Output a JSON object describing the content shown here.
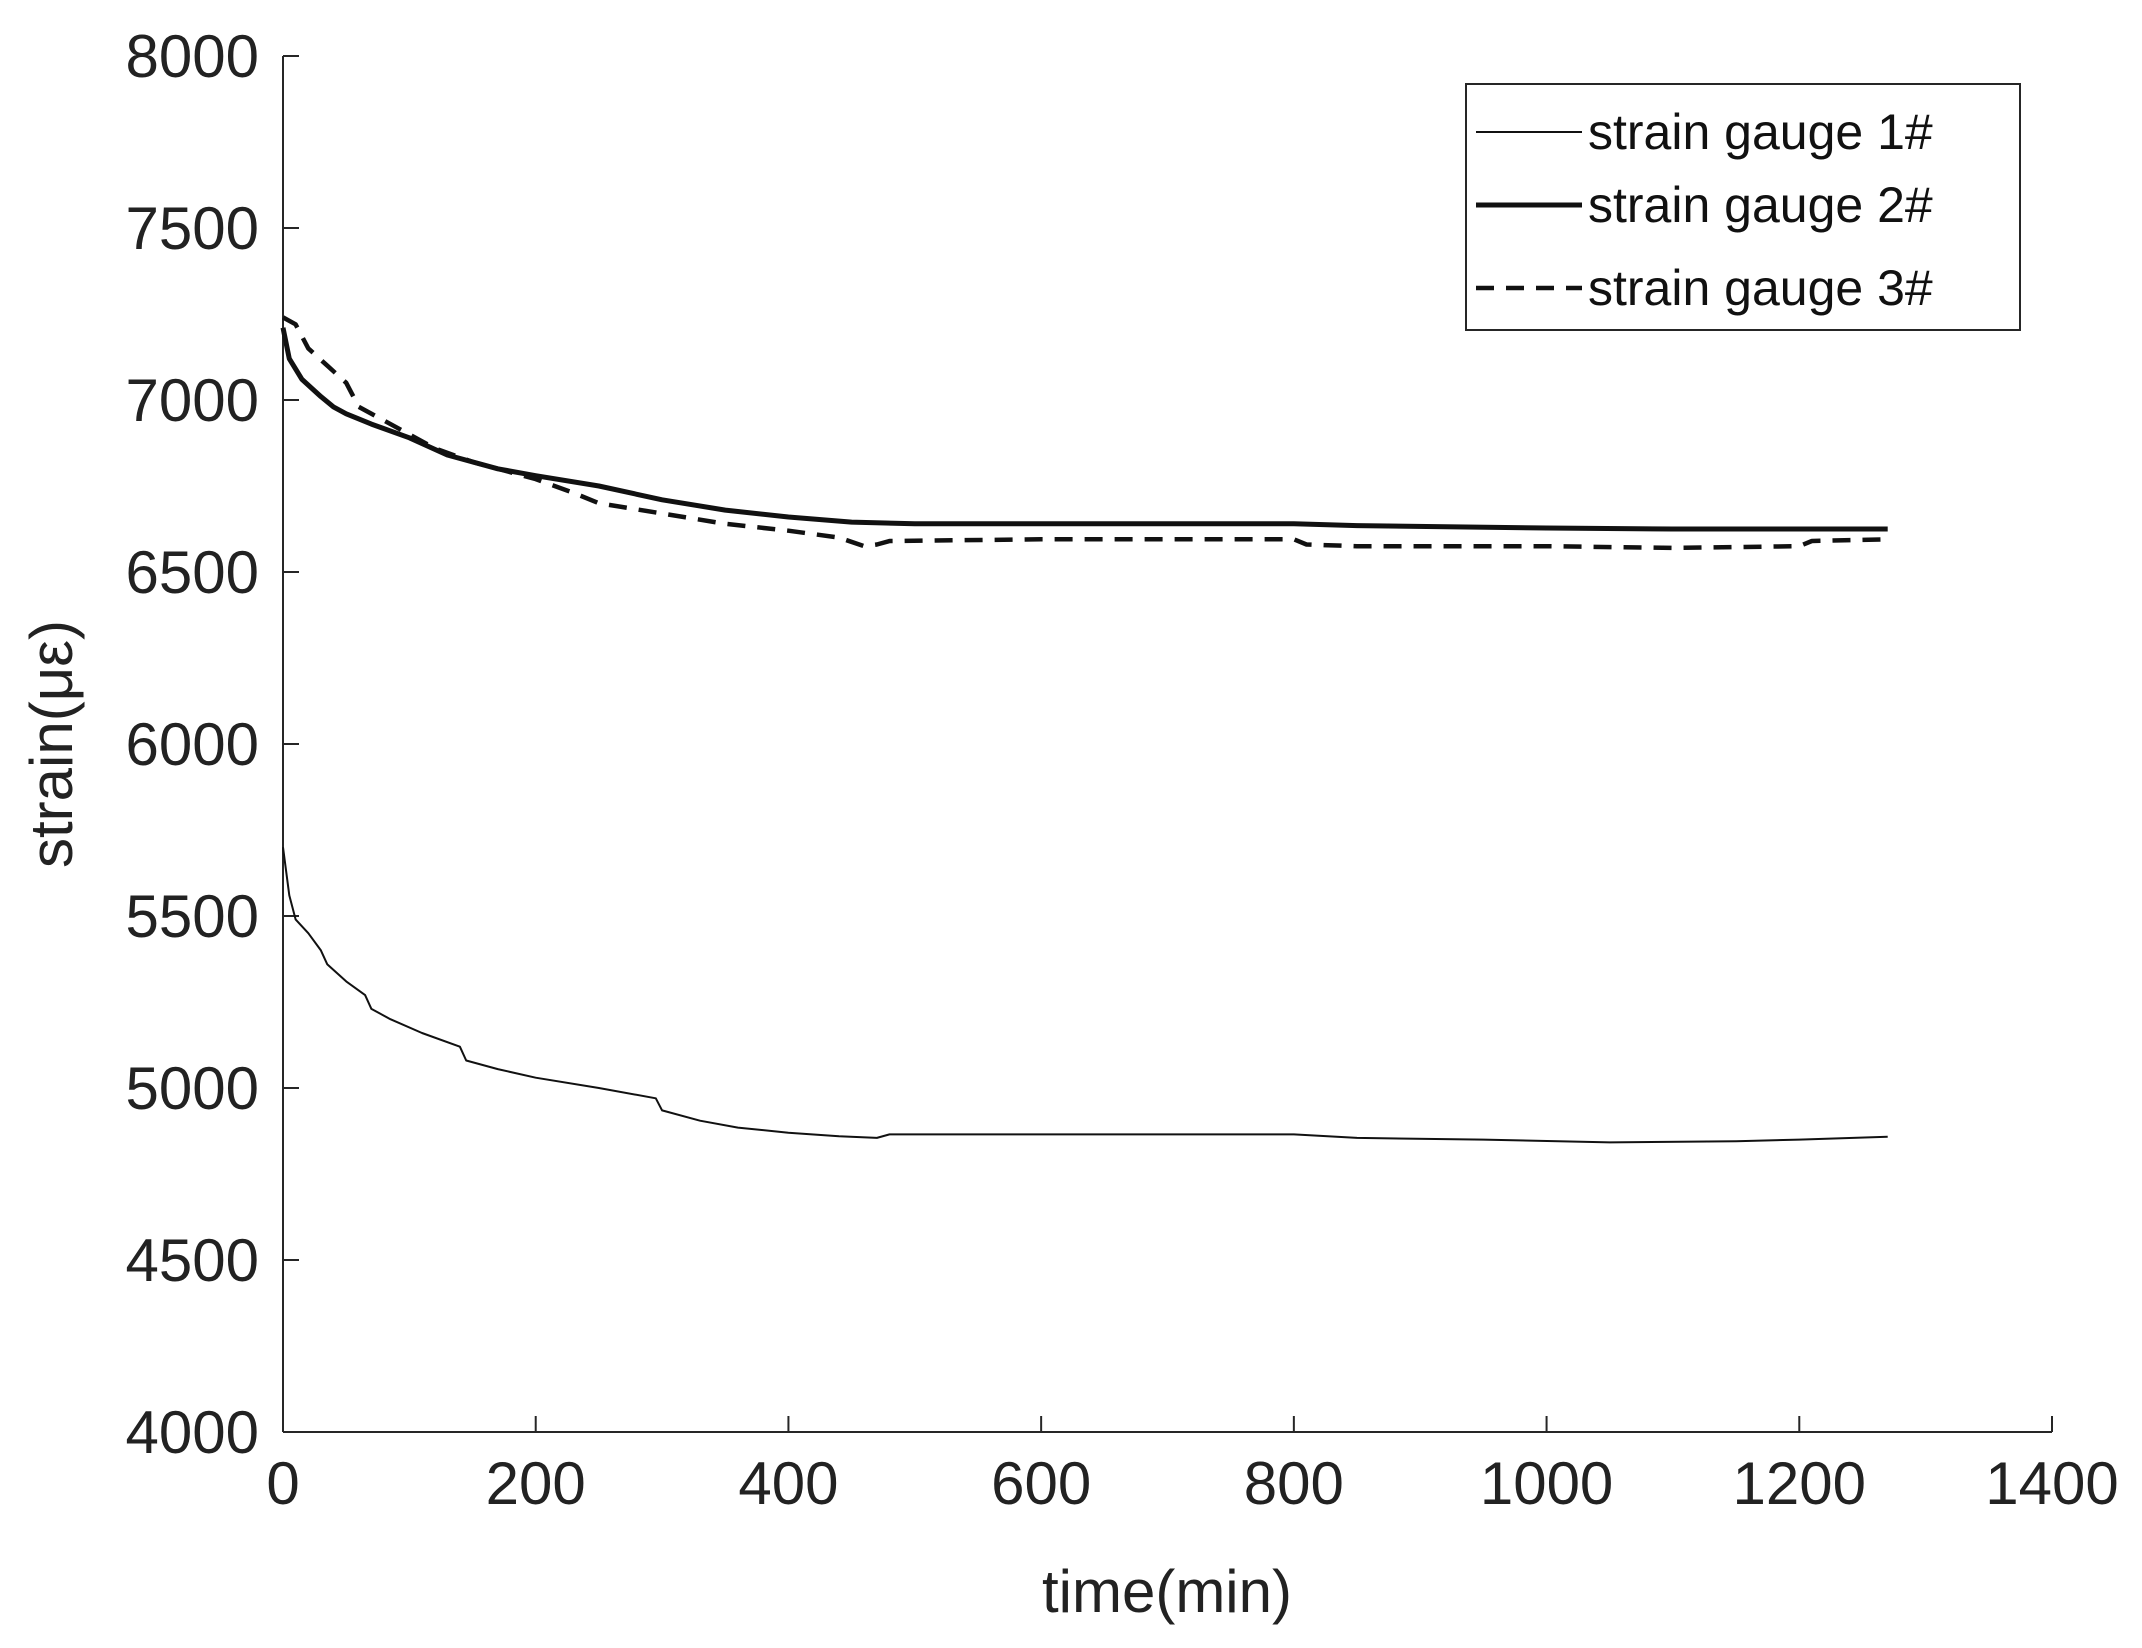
{
  "chart_data": {
    "type": "line",
    "title": "",
    "xlabel": "time(min)",
    "ylabel": "strain(με)",
    "xlim": [
      0,
      1400
    ],
    "ylim": [
      4000,
      8000
    ],
    "xticks": [
      0,
      200,
      400,
      600,
      800,
      1000,
      1200,
      1400
    ],
    "yticks": [
      4000,
      4500,
      5000,
      5500,
      6000,
      6500,
      7000,
      7500,
      8000
    ],
    "grid": false,
    "legend_position": "top-right",
    "series": [
      {
        "name": "strain gauge 1#",
        "style": "thin-solid",
        "color": "#111111",
        "points": [
          [
            0,
            5700
          ],
          [
            5,
            5560
          ],
          [
            10,
            5490
          ],
          [
            20,
            5450
          ],
          [
            30,
            5400
          ],
          [
            35,
            5360
          ],
          [
            50,
            5310
          ],
          [
            65,
            5270
          ],
          [
            70,
            5230
          ],
          [
            85,
            5200
          ],
          [
            110,
            5160
          ],
          [
            140,
            5120
          ],
          [
            145,
            5080
          ],
          [
            170,
            5055
          ],
          [
            200,
            5030
          ],
          [
            250,
            5000
          ],
          [
            295,
            4970
          ],
          [
            300,
            4935
          ],
          [
            330,
            4905
          ],
          [
            360,
            4885
          ],
          [
            400,
            4870
          ],
          [
            440,
            4860
          ],
          [
            470,
            4855
          ],
          [
            480,
            4865
          ],
          [
            600,
            4865
          ],
          [
            700,
            4865
          ],
          [
            800,
            4865
          ],
          [
            850,
            4855
          ],
          [
            950,
            4850
          ],
          [
            1050,
            4842
          ],
          [
            1150,
            4845
          ],
          [
            1200,
            4850
          ],
          [
            1270,
            4858
          ]
        ]
      },
      {
        "name": "strain gauge 2#",
        "style": "thick-solid",
        "color": "#111111",
        "points": [
          [
            0,
            7210
          ],
          [
            5,
            7120
          ],
          [
            15,
            7060
          ],
          [
            30,
            7010
          ],
          [
            40,
            6980
          ],
          [
            50,
            6960
          ],
          [
            70,
            6930
          ],
          [
            100,
            6890
          ],
          [
            130,
            6840
          ],
          [
            170,
            6800
          ],
          [
            200,
            6780
          ],
          [
            250,
            6750
          ],
          [
            300,
            6710
          ],
          [
            350,
            6680
          ],
          [
            400,
            6660
          ],
          [
            450,
            6645
          ],
          [
            500,
            6640
          ],
          [
            700,
            6640
          ],
          [
            800,
            6640
          ],
          [
            850,
            6635
          ],
          [
            1000,
            6628
          ],
          [
            1100,
            6625
          ],
          [
            1270,
            6625
          ]
        ]
      },
      {
        "name": "strain gauge 3#",
        "style": "dashed",
        "color": "#111111",
        "points": [
          [
            0,
            7240
          ],
          [
            10,
            7220
          ],
          [
            20,
            7150
          ],
          [
            35,
            7100
          ],
          [
            50,
            7050
          ],
          [
            60,
            6980
          ],
          [
            80,
            6940
          ],
          [
            100,
            6900
          ],
          [
            120,
            6860
          ],
          [
            150,
            6820
          ],
          [
            200,
            6770
          ],
          [
            230,
            6730
          ],
          [
            250,
            6700
          ],
          [
            300,
            6670
          ],
          [
            350,
            6640
          ],
          [
            400,
            6620
          ],
          [
            440,
            6600
          ],
          [
            460,
            6575
          ],
          [
            470,
            6580
          ],
          [
            480,
            6590
          ],
          [
            600,
            6595
          ],
          [
            800,
            6595
          ],
          [
            810,
            6580
          ],
          [
            850,
            6575
          ],
          [
            1000,
            6575
          ],
          [
            1100,
            6570
          ],
          [
            1200,
            6575
          ],
          [
            1210,
            6590
          ],
          [
            1270,
            6595
          ]
        ]
      }
    ]
  }
}
